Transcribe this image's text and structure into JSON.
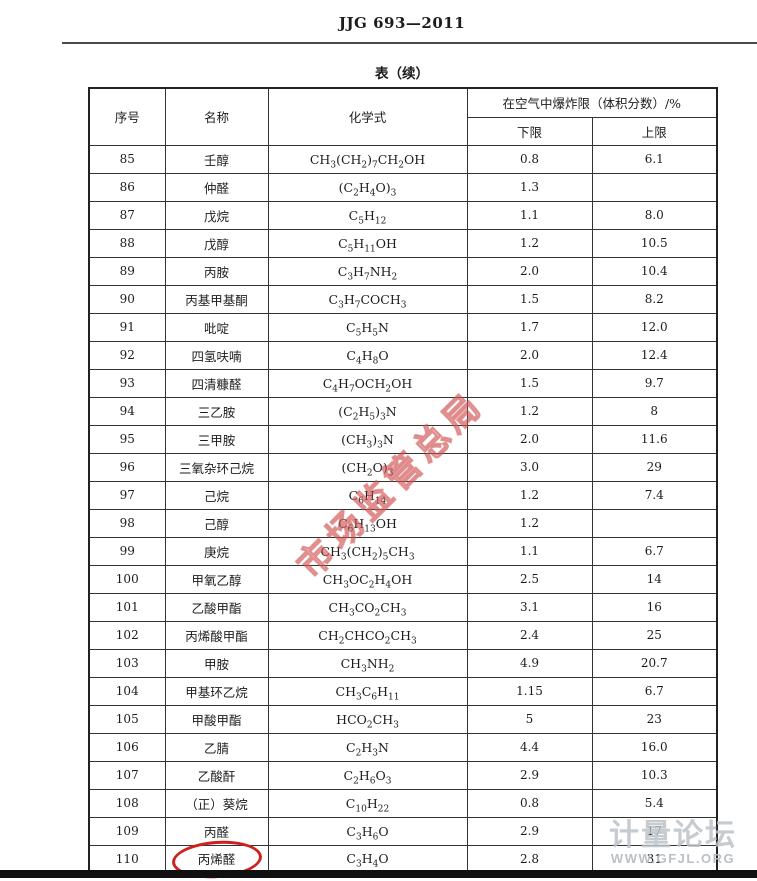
{
  "page": {
    "standard_code": "JJG 693—2011",
    "table_caption": "表（续）"
  },
  "table": {
    "columns": {
      "index": "序号",
      "name": "名称",
      "formula": "化学式",
      "limits_group": "在空气中爆炸限（体积分数）/%",
      "lower": "下限",
      "upper": "上限"
    },
    "rows": [
      {
        "index": "85",
        "name": "壬醇",
        "formula": "CH₃(CH₂)₇CH₂OH",
        "lower": "0.8",
        "upper": "6.1"
      },
      {
        "index": "86",
        "name": "仲醛",
        "formula": "(C₂H₄O)₃",
        "lower": "1.3",
        "upper": ""
      },
      {
        "index": "87",
        "name": "戊烷",
        "formula": "C₅H₁₂",
        "lower": "1.1",
        "upper": "8.0"
      },
      {
        "index": "88",
        "name": "戊醇",
        "formula": "C₅H₁₁OH",
        "lower": "1.2",
        "upper": "10.5"
      },
      {
        "index": "89",
        "name": "丙胺",
        "formula": "C₃H₇NH₂",
        "lower": "2.0",
        "upper": "10.4"
      },
      {
        "index": "90",
        "name": "丙基甲基酮",
        "formula": "C₃H₇COCH₃",
        "lower": "1.5",
        "upper": "8.2"
      },
      {
        "index": "91",
        "name": "吡啶",
        "formula": "C₅H₅N",
        "lower": "1.7",
        "upper": "12.0"
      },
      {
        "index": "92",
        "name": "四氢呋喃",
        "formula": "C₄H₈O",
        "lower": "2.0",
        "upper": "12.4"
      },
      {
        "index": "93",
        "name": "四清糠醛",
        "formula": "C₄H₇OCH₂OH",
        "lower": "1.5",
        "upper": "9.7"
      },
      {
        "index": "94",
        "name": "三乙胺",
        "formula": "(C₂H₅)₃N",
        "lower": "1.2",
        "upper": "8"
      },
      {
        "index": "95",
        "name": "三甲胺",
        "formula": "(CH₃)₃N",
        "lower": "2.0",
        "upper": "11.6"
      },
      {
        "index": "96",
        "name": "三氧杂环己烷",
        "formula": "(CH₂O)₃",
        "lower": "3.0",
        "upper": "29"
      },
      {
        "index": "97",
        "name": "己烷",
        "formula": "C₆H₁₄",
        "lower": "1.2",
        "upper": "7.4"
      },
      {
        "index": "98",
        "name": "己醇",
        "formula": "C₆H₁₃OH",
        "lower": "1.2",
        "upper": ""
      },
      {
        "index": "99",
        "name": "庚烷",
        "formula": "CH₃(CH₂)₅CH₃",
        "lower": "1.1",
        "upper": "6.7"
      },
      {
        "index": "100",
        "name": "甲氧乙醇",
        "formula": "CH₃OC₂H₄OH",
        "lower": "2.5",
        "upper": "14"
      },
      {
        "index": "101",
        "name": "乙酸甲酯",
        "formula": "CH₃CO₂CH₃",
        "lower": "3.1",
        "upper": "16"
      },
      {
        "index": "102",
        "name": "丙烯酸甲酯",
        "formula": "CH₂CHCO₂CH₃",
        "lower": "2.4",
        "upper": "25"
      },
      {
        "index": "103",
        "name": "甲胺",
        "formula": "CH₃NH₂",
        "lower": "4.9",
        "upper": "20.7"
      },
      {
        "index": "104",
        "name": "甲基环乙烷",
        "formula": "CH₃C₆H₁₁",
        "lower": "1.15",
        "upper": "6.7"
      },
      {
        "index": "105",
        "name": "甲酸甲酯",
        "formula": "HCO₂CH₃",
        "lower": "5",
        "upper": "23"
      },
      {
        "index": "106",
        "name": "乙腈",
        "formula": "C₂H₃N",
        "lower": "4.4",
        "upper": "16.0"
      },
      {
        "index": "107",
        "name": "乙酸酐",
        "formula": "C₂H₆O₃",
        "lower": "2.9",
        "upper": "10.3"
      },
      {
        "index": "108",
        "name": "（正）葵烷",
        "formula": "C₁₀H₂₂",
        "lower": "0.8",
        "upper": "5.4"
      },
      {
        "index": "109",
        "name": "丙醛",
        "formula": "C₃H₆O",
        "lower": "2.9",
        "upper": "17"
      },
      {
        "index": "110",
        "name": "丙烯醛",
        "formula": "C₃H₄O",
        "lower": "2.8",
        "upper": "31"
      }
    ]
  },
  "annotations": {
    "red_circled_row_index": "110",
    "diagonal_watermark_text": "市场监管总局",
    "forum_watermark_title": "计量论坛",
    "forum_watermark_url": "WWW.GFJL.ORG"
  },
  "colors": {
    "circle_red": "#cf2020",
    "watermark_red": "#cd6a6a",
    "watermark_gray": "#bcc2c8",
    "bottom_bar": "#101010"
  }
}
